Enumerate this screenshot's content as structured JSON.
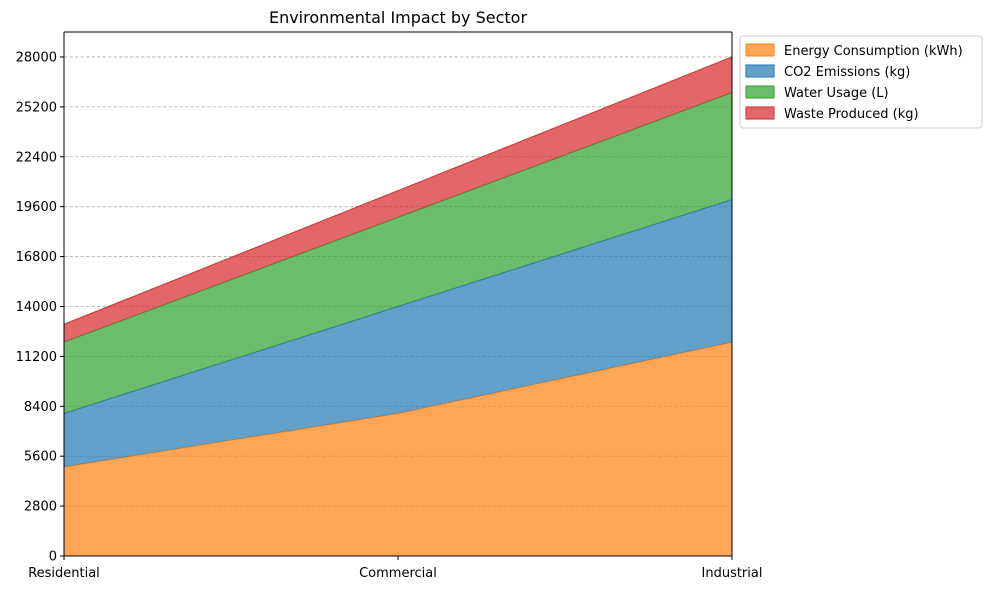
{
  "chart_data": {
    "type": "area",
    "stacked": true,
    "title": "Environmental Impact by Sector",
    "xlabel": "",
    "ylabel": "",
    "categories": [
      "Residential",
      "Commercial",
      "Industrial"
    ],
    "series": [
      {
        "name": "Energy Consumption (kWh)",
        "values": [
          5000,
          8000,
          12000
        ],
        "color": "#ff7f0e"
      },
      {
        "name": "CO2 Emissions (kg)",
        "values": [
          3000,
          6000,
          8000
        ],
        "color": "#1f77b4"
      },
      {
        "name": "Water Usage (L)",
        "values": [
          4000,
          5000,
          6000
        ],
        "color": "#2ca02c"
      },
      {
        "name": "Waste Produced (kg)",
        "values": [
          1000,
          1500,
          2000
        ],
        "color": "#d62728"
      }
    ],
    "yticks": [
      0,
      2800,
      5600,
      8400,
      11200,
      14000,
      16800,
      19600,
      22400,
      25200,
      28000
    ],
    "ylim": [
      0,
      29400
    ],
    "grid": "horizontal dashed",
    "legend_position": "outside-upper-right",
    "alpha": 0.7
  }
}
